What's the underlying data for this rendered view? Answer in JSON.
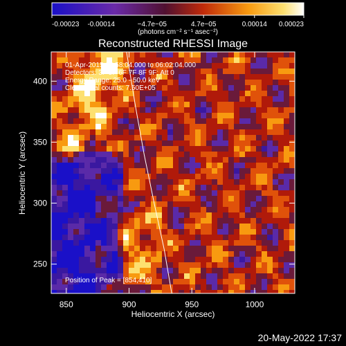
{
  "colorbar": {
    "tick_labels": [
      "-0.00023",
      "-0.00014",
      "−4.7e−05",
      "4.7e−05",
      "0.00014",
      "0.00023"
    ],
    "tick_values": [
      -0.00023,
      -0.00014,
      -4.7e-05,
      4.7e-05,
      0.00014,
      0.00023
    ],
    "range": [
      -0.00023,
      0.00023
    ],
    "units_label": "(photons cm⁻² s⁻¹ asec⁻²)"
  },
  "chart_data": {
    "type": "heatmap",
    "title": "Reconstructed RHESSI Image",
    "xlabel": "Heliocentric X (arcsec)",
    "ylabel": "Heliocentric Y (arcsec)",
    "xlim": [
      838,
      1032
    ],
    "ylim": [
      226,
      424
    ],
    "xticks": [
      850,
      900,
      950,
      1000
    ],
    "yticks": [
      250,
      300,
      350,
      400
    ],
    "annotations": [
      "01-Apr-2015 05:58:04.000 to 06:02:04.000",
      "Detectors: 3F 5F 6F 7F 8F 9F; Att 0",
      "Energy Range: 25.0 - 50.0 keV",
      "Clean     Total counts: 7.50E+05"
    ],
    "peak_label": "Position of Peak = [854,410]",
    "peak_position": [
      854,
      410
    ],
    "limb_curve": [
      [
        898,
        424
      ],
      [
        905,
        380
      ],
      [
        912,
        340
      ],
      [
        920,
        300
      ],
      [
        928,
        262
      ],
      [
        934,
        226
      ]
    ],
    "colormap": [
      "#1a10c8",
      "#3a18a0",
      "#5a2aa8",
      "#6a1a3a",
      "#b01a0a",
      "#e0520a",
      "#f89a10",
      "#fde070",
      "#ffffff"
    ]
  },
  "footer": {
    "timestamp": "20-May-2022 17:37"
  }
}
